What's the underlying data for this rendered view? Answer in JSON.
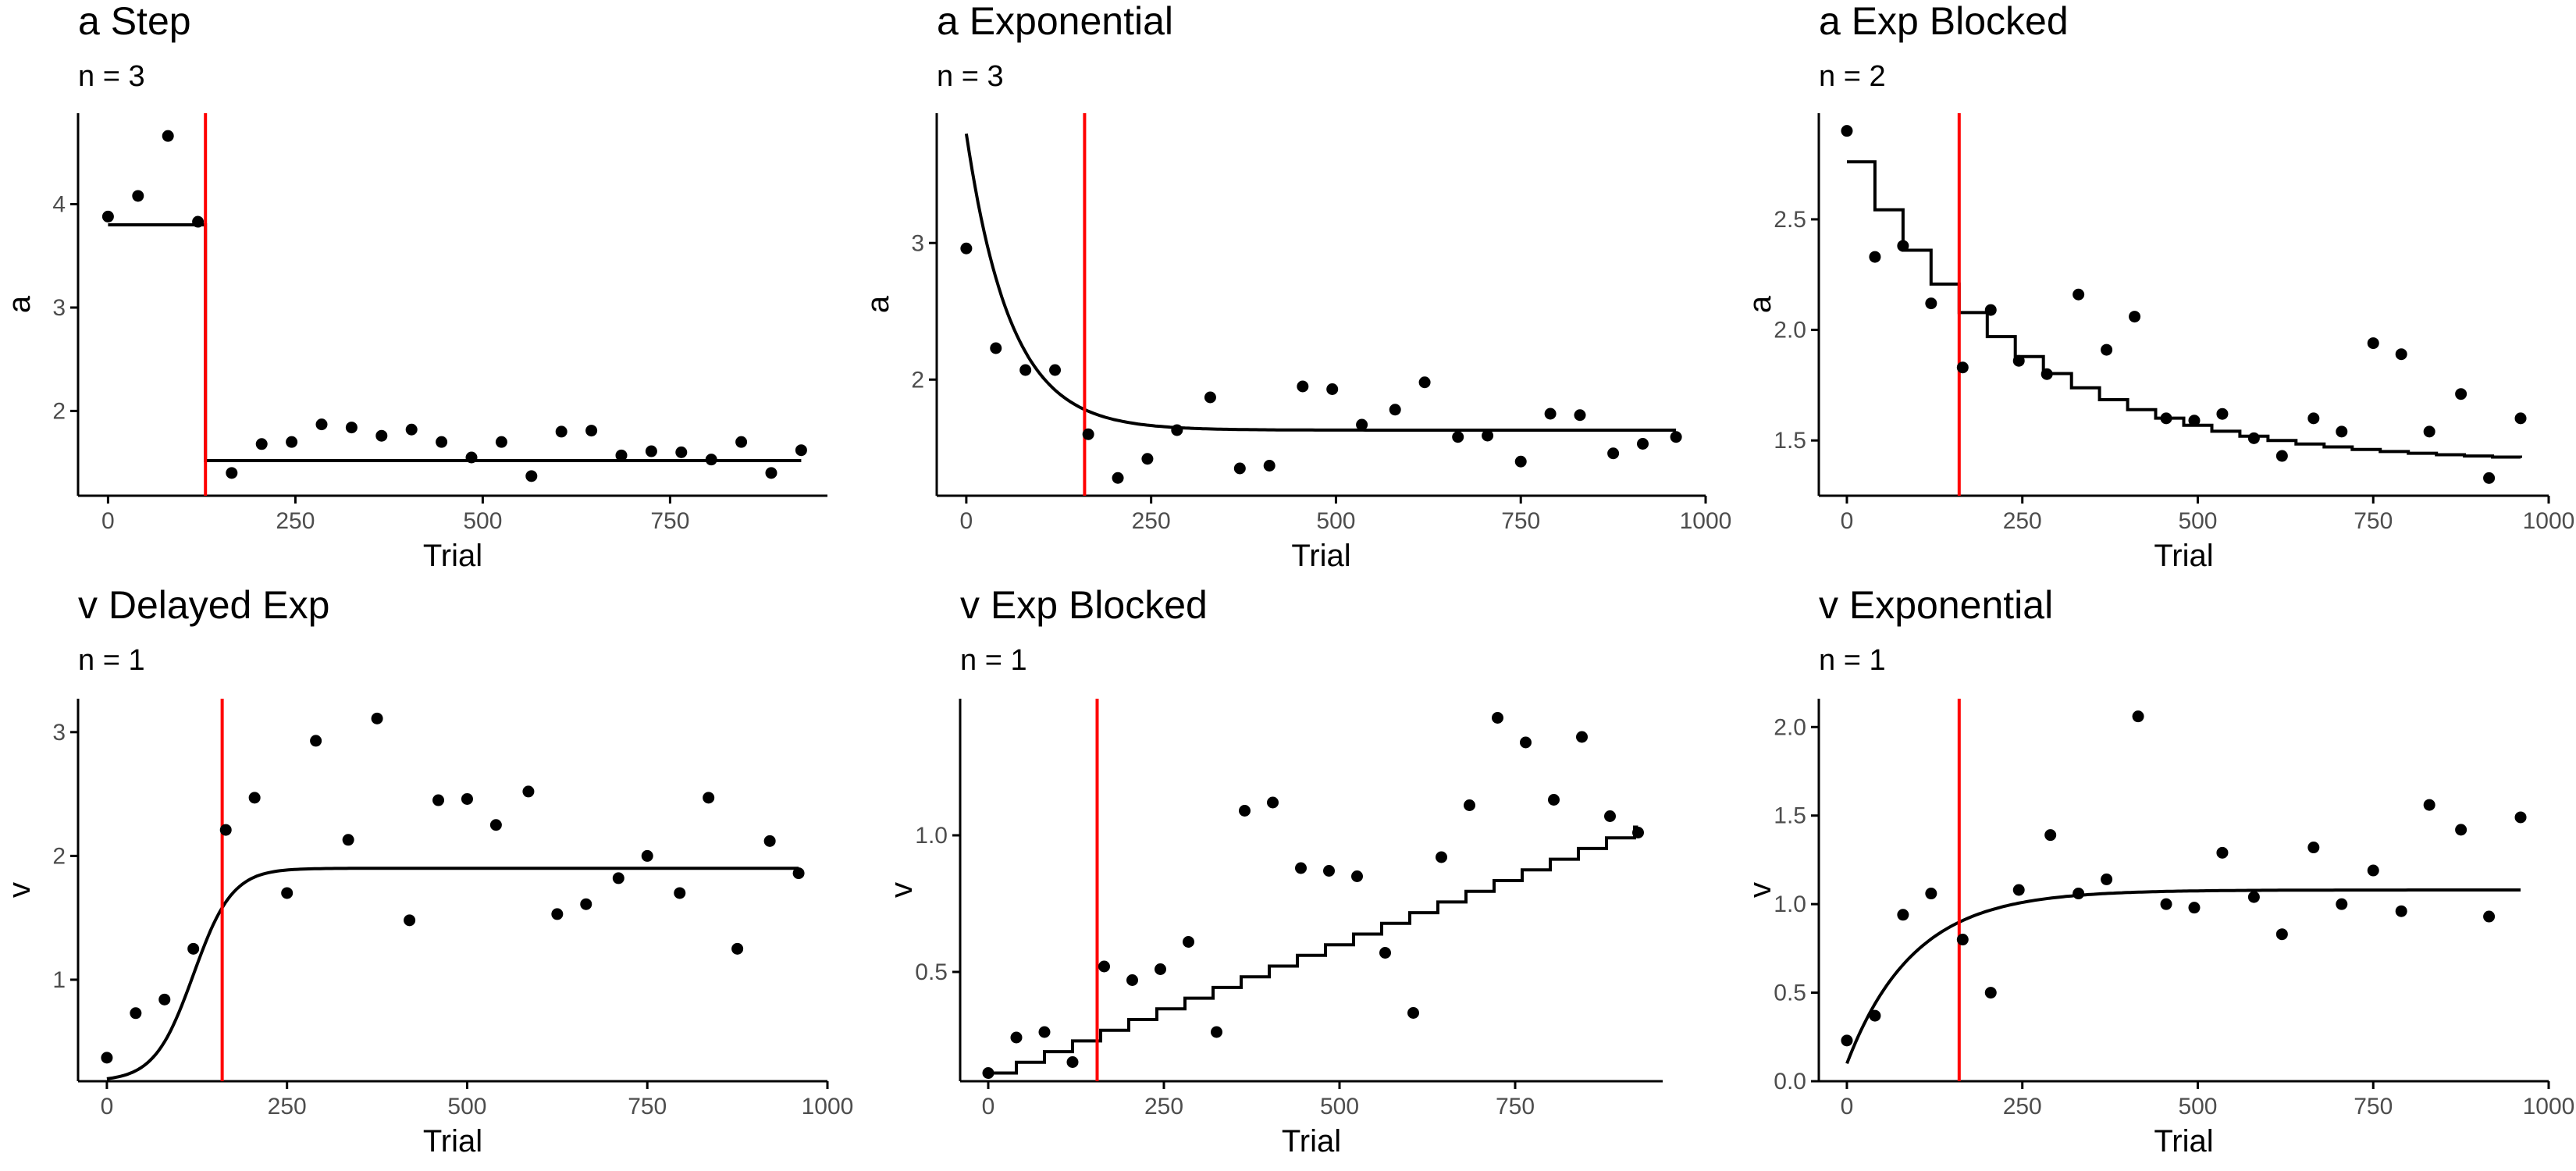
{
  "chart_data": [
    {
      "type": "scatter",
      "title": "a Step",
      "subtitle": "n = 3",
      "xlabel": "Trial",
      "ylabel": "a",
      "xlim": [
        -40,
        960
      ],
      "ylim": [
        1.18,
        4.88
      ],
      "xticks": [
        0,
        250,
        500,
        750
      ],
      "xtick_labels": [
        "0",
        "250",
        "500",
        "750"
      ],
      "yticks": [
        2,
        3,
        4
      ],
      "ytick_labels": [
        "2",
        "3",
        "4"
      ],
      "changepoint": 130,
      "points": [
        [
          0,
          3.88
        ],
        [
          40,
          4.08
        ],
        [
          80,
          4.66
        ],
        [
          120,
          3.83
        ],
        [
          165,
          1.4
        ],
        [
          205,
          1.68
        ],
        [
          245,
          1.7
        ],
        [
          285,
          1.87
        ],
        [
          325,
          1.84
        ],
        [
          365,
          1.76
        ],
        [
          405,
          1.82
        ],
        [
          445,
          1.7
        ],
        [
          485,
          1.55
        ],
        [
          525,
          1.7
        ],
        [
          565,
          1.37
        ],
        [
          605,
          1.8
        ],
        [
          645,
          1.81
        ],
        [
          685,
          1.57
        ],
        [
          725,
          1.61
        ],
        [
          765,
          1.6
        ],
        [
          805,
          1.53
        ],
        [
          845,
          1.7
        ],
        [
          885,
          1.4
        ],
        [
          925,
          1.62
        ]
      ],
      "fit": [
        [
          0,
          3.8
        ],
        [
          130,
          3.8
        ],
        [
          130,
          1.52
        ],
        [
          925,
          1.52
        ]
      ]
    },
    {
      "type": "scatter",
      "title": "a Exponential",
      "subtitle": "n = 3",
      "xlabel": "Trial",
      "ylabel": "a",
      "xlim": [
        -40,
        1000
      ],
      "ylim": [
        1.15,
        3.95
      ],
      "xticks": [
        0,
        250,
        500,
        750,
        1000
      ],
      "xtick_labels": [
        "0",
        "250",
        "500",
        "750",
        "1000"
      ],
      "yticks": [
        2,
        3
      ],
      "ytick_labels": [
        "2",
        "3"
      ],
      "changepoint": 160,
      "points": [
        [
          0,
          2.96
        ],
        [
          40,
          2.23
        ],
        [
          80,
          2.07
        ],
        [
          120,
          2.07
        ],
        [
          165,
          1.6
        ],
        [
          205,
          1.28
        ],
        [
          245,
          1.42
        ],
        [
          285,
          1.63
        ],
        [
          330,
          1.87
        ],
        [
          370,
          1.35
        ],
        [
          410,
          1.37
        ],
        [
          455,
          1.95
        ],
        [
          495,
          1.93
        ],
        [
          535,
          1.67
        ],
        [
          580,
          1.78
        ],
        [
          620,
          1.98
        ],
        [
          665,
          1.58
        ],
        [
          705,
          1.59
        ],
        [
          750,
          1.4
        ],
        [
          790,
          1.75
        ],
        [
          830,
          1.74
        ],
        [
          875,
          1.46
        ],
        [
          915,
          1.53
        ],
        [
          960,
          1.58
        ]
      ],
      "fit_model": {
        "kind": "exp",
        "x0": 0,
        "x1": 960,
        "asym": 1.63,
        "start": 3.8,
        "tau": 60
      }
    },
    {
      "type": "scatter",
      "title": "a Exp Blocked",
      "subtitle": "n = 2",
      "xlabel": "Trial",
      "ylabel": "a",
      "xlim": [
        -40,
        1000
      ],
      "ylim": [
        1.25,
        2.98
      ],
      "xticks": [
        0,
        250,
        500,
        750,
        1000
      ],
      "xtick_labels": [
        "0",
        "250",
        "500",
        "750",
        "1000"
      ],
      "yticks": [
        1.5,
        2.0,
        2.5
      ],
      "ytick_labels": [
        "1.5",
        "2.0",
        "2.5"
      ],
      "changepoint": 160,
      "points": [
        [
          0,
          2.9
        ],
        [
          40,
          2.33
        ],
        [
          80,
          2.38
        ],
        [
          120,
          2.12
        ],
        [
          165,
          1.83
        ],
        [
          205,
          2.09
        ],
        [
          245,
          1.86
        ],
        [
          285,
          1.8
        ],
        [
          330,
          2.16
        ],
        [
          370,
          1.91
        ],
        [
          410,
          2.06
        ],
        [
          455,
          1.6
        ],
        [
          495,
          1.59
        ],
        [
          535,
          1.62
        ],
        [
          580,
          1.51
        ],
        [
          620,
          1.43
        ],
        [
          665,
          1.6
        ],
        [
          705,
          1.54
        ],
        [
          750,
          1.94
        ],
        [
          790,
          1.89
        ],
        [
          830,
          1.54
        ],
        [
          875,
          1.71
        ],
        [
          915,
          1.33
        ],
        [
          960,
          1.6
        ]
      ],
      "fit_model": {
        "kind": "step-exp",
        "x0": 0,
        "x1": 960,
        "step": 40,
        "asym": 1.4,
        "start": 2.76,
        "tau": 230
      }
    },
    {
      "type": "scatter",
      "title": "v Delayed Exp",
      "subtitle": "n = 1",
      "xlabel": "Trial",
      "ylabel": "v",
      "xlim": [
        -40,
        1000
      ],
      "ylim": [
        0.18,
        3.27
      ],
      "xticks": [
        0,
        250,
        500,
        750,
        1000
      ],
      "xtick_labels": [
        "0",
        "250",
        "500",
        "750",
        "1000"
      ],
      "yticks": [
        1,
        2,
        3
      ],
      "ytick_labels": [
        "1",
        "2",
        "3"
      ],
      "changepoint": 160,
      "points": [
        [
          0,
          0.37
        ],
        [
          40,
          0.73
        ],
        [
          80,
          0.84
        ],
        [
          120,
          1.25
        ],
        [
          165,
          2.21
        ],
        [
          205,
          2.47
        ],
        [
          250,
          1.7
        ],
        [
          290,
          2.93
        ],
        [
          335,
          2.13
        ],
        [
          375,
          3.11
        ],
        [
          420,
          1.48
        ],
        [
          460,
          2.45
        ],
        [
          500,
          2.46
        ],
        [
          540,
          2.25
        ],
        [
          585,
          2.52
        ],
        [
          625,
          1.53
        ],
        [
          665,
          1.61
        ],
        [
          710,
          1.82
        ],
        [
          750,
          2.0
        ],
        [
          795,
          1.7
        ],
        [
          835,
          2.47
        ],
        [
          875,
          1.25
        ],
        [
          920,
          2.12
        ],
        [
          960,
          1.86
        ]
      ],
      "fit_model": {
        "kind": "logistic",
        "x0": 0,
        "x1": 960,
        "low": 0.18,
        "high": 1.9,
        "mid": 120,
        "scale": 27
      }
    },
    {
      "type": "scatter",
      "title": "v Exp Blocked",
      "subtitle": "n = 1",
      "xlabel": "Trial",
      "ylabel": "v",
      "xlim": [
        -40,
        960
      ],
      "ylim": [
        0.1,
        1.5
      ],
      "xticks": [
        0,
        250,
        500,
        750
      ],
      "xtick_labels": [
        "0",
        "250",
        "500",
        "750"
      ],
      "yticks": [
        0.5,
        1.0
      ],
      "ytick_labels": [
        "0.5",
        "1.0"
      ],
      "changepoint": 155,
      "points": [
        [
          0,
          0.13
        ],
        [
          40,
          0.26
        ],
        [
          80,
          0.28
        ],
        [
          120,
          0.17
        ],
        [
          165,
          0.52
        ],
        [
          205,
          0.47
        ],
        [
          245,
          0.51
        ],
        [
          285,
          0.61
        ],
        [
          325,
          0.28
        ],
        [
          365,
          1.09
        ],
        [
          405,
          1.12
        ],
        [
          445,
          0.88
        ],
        [
          485,
          0.87
        ],
        [
          525,
          0.85
        ],
        [
          565,
          0.57
        ],
        [
          605,
          0.35
        ],
        [
          645,
          0.92
        ],
        [
          685,
          1.11
        ],
        [
          725,
          1.43
        ],
        [
          765,
          1.34
        ],
        [
          805,
          1.13
        ],
        [
          845,
          1.36
        ],
        [
          885,
          1.07
        ],
        [
          925,
          1.01
        ]
      ],
      "fit_model": {
        "kind": "step-linear",
        "x0": 0,
        "x1": 925,
        "step": 40,
        "start": 0.13,
        "end": 1.03
      }
    },
    {
      "type": "scatter",
      "title": "v Exponential",
      "subtitle": "n = 1",
      "xlabel": "Trial",
      "ylabel": "v",
      "xlim": [
        -40,
        1000
      ],
      "ylim": [
        0.0,
        2.16
      ],
      "xticks": [
        0,
        250,
        500,
        750,
        1000
      ],
      "xtick_labels": [
        "0",
        "250",
        "500",
        "750",
        "1000"
      ],
      "yticks": [
        0.0,
        0.5,
        1.0,
        1.5,
        2.0
      ],
      "ytick_labels": [
        "0.0",
        "0.5",
        "1.0",
        "1.5",
        "2.0"
      ],
      "changepoint": 160,
      "points": [
        [
          0,
          0.23
        ],
        [
          40,
          0.37
        ],
        [
          80,
          0.94
        ],
        [
          120,
          1.06
        ],
        [
          165,
          0.8
        ],
        [
          205,
          0.5
        ],
        [
          245,
          1.08
        ],
        [
          290,
          1.39
        ],
        [
          330,
          1.06
        ],
        [
          370,
          1.14
        ],
        [
          415,
          2.06
        ],
        [
          455,
          1.0
        ],
        [
          495,
          0.98
        ],
        [
          535,
          1.29
        ],
        [
          580,
          1.04
        ],
        [
          620,
          0.83
        ],
        [
          665,
          1.32
        ],
        [
          705,
          1.0
        ],
        [
          750,
          1.19
        ],
        [
          790,
          0.96
        ],
        [
          830,
          1.56
        ],
        [
          875,
          1.42
        ],
        [
          915,
          0.93
        ],
        [
          960,
          1.49
        ]
      ],
      "fit_model": {
        "kind": "exp",
        "x0": 0,
        "x1": 960,
        "asym": 1.08,
        "start": 0.1,
        "tau": 95
      }
    }
  ]
}
